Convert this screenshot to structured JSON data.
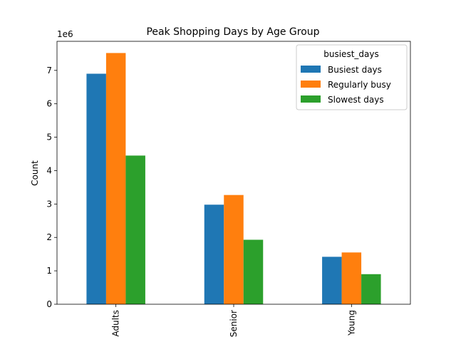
{
  "chart_data": {
    "type": "bar",
    "title": "Peak Shopping Days by Age Group",
    "xlabel": "",
    "ylabel": "Count",
    "scale_label": "1e6",
    "categories": [
      "Adults",
      "Senior",
      "Young"
    ],
    "series": [
      {
        "name": "Busiest days",
        "values": [
          6.9,
          2.98,
          1.42
        ],
        "color": "#1f77b4"
      },
      {
        "name": "Regularly busy",
        "values": [
          7.52,
          3.27,
          1.55
        ],
        "color": "#ff7f0e"
      },
      {
        "name": "Slowest days",
        "values": [
          4.45,
          1.93,
          0.9
        ],
        "color": "#2ca02c"
      }
    ],
    "ylim": [
      0,
      7.87
    ],
    "yticks": [
      0,
      1,
      2,
      3,
      4,
      5,
      6,
      7
    ],
    "legend": {
      "title": "busiest_days",
      "placement": "top-right"
    },
    "grid": false
  }
}
